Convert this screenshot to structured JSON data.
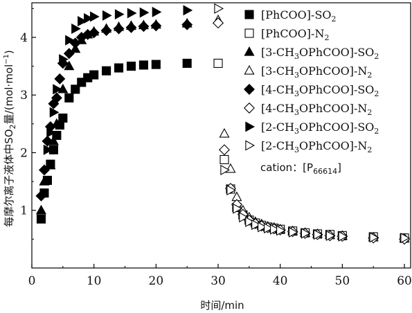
{
  "chart_data": {
    "type": "scatter",
    "xlabel": "时间/min",
    "ylabel": {
      "prefix": "每摩尔离子液体中SO",
      "sub": "2",
      "suffix": "量/(mol·mol",
      "sup": "−1",
      "end": ")"
    },
    "xlim": [
      0,
      61
    ],
    "ylim": [
      0,
      4.6
    ],
    "xticks": [
      0,
      10,
      20,
      30,
      40,
      50,
      60
    ],
    "yticks": [
      1,
      2,
      3,
      4
    ],
    "grid": false,
    "legend_position": "top-right",
    "annotation": {
      "prefix": "cation：[P",
      "sub": "66614",
      "suffix": "]"
    },
    "series": [
      {
        "name": "[PhCOO]-SO2",
        "label": {
          "base": "[PhCOO]-SO",
          "sub": "2",
          "tail": ""
        },
        "marker": "square",
        "filled": true,
        "points": [
          [
            1.5,
            0.85
          ],
          [
            2,
            1.3
          ],
          [
            2.5,
            1.52
          ],
          [
            3,
            1.8
          ],
          [
            3.5,
            2.05
          ],
          [
            4,
            2.3
          ],
          [
            4.5,
            2.48
          ],
          [
            5,
            2.6
          ],
          [
            6,
            2.95
          ],
          [
            7,
            3.1
          ],
          [
            8,
            3.22
          ],
          [
            9,
            3.3
          ],
          [
            10,
            3.35
          ],
          [
            12,
            3.42
          ],
          [
            14,
            3.47
          ],
          [
            16,
            3.5
          ],
          [
            18,
            3.52
          ],
          [
            20,
            3.53
          ],
          [
            25,
            3.55
          ]
        ]
      },
      {
        "name": "[PhCOO]-N2",
        "label": {
          "base": "[PhCOO]-N",
          "sub": "2",
          "tail": ""
        },
        "marker": "square",
        "filled": false,
        "points": [
          [
            30,
            3.55
          ],
          [
            31,
            1.88
          ],
          [
            32,
            1.37
          ],
          [
            33,
            1.05
          ],
          [
            34,
            0.92
          ],
          [
            35,
            0.83
          ],
          [
            36,
            0.78
          ],
          [
            37,
            0.74
          ],
          [
            38,
            0.71
          ],
          [
            39,
            0.69
          ],
          [
            40,
            0.67
          ],
          [
            42,
            0.64
          ],
          [
            44,
            0.61
          ],
          [
            46,
            0.59
          ],
          [
            48,
            0.58
          ],
          [
            50,
            0.56
          ],
          [
            55,
            0.54
          ],
          [
            60,
            0.52
          ]
        ]
      },
      {
        "name": "[3-CH3OPhCOO]-SO2",
        "label": {
          "base": "[3-CH",
          "sub": "3",
          "tail": "OPhCOO]-SO",
          "sub2": "2"
        },
        "marker": "triangle-up",
        "filled": true,
        "points": [
          [
            1.5,
            1.0
          ],
          [
            2,
            1.5
          ],
          [
            3,
            1.78
          ],
          [
            3.5,
            2.2
          ],
          [
            4,
            2.5
          ],
          [
            5,
            3.1
          ],
          [
            6,
            3.5
          ],
          [
            7,
            3.8
          ],
          [
            8,
            3.95
          ],
          [
            9,
            4.05
          ],
          [
            10,
            4.1
          ],
          [
            12,
            4.15
          ],
          [
            14,
            4.18
          ],
          [
            16,
            4.2
          ],
          [
            18,
            4.21
          ],
          [
            20,
            4.22
          ],
          [
            25,
            4.24
          ]
        ]
      },
      {
        "name": "[3-CH3OPhCOO]-N2",
        "label": {
          "base": "[3-CH",
          "sub": "3",
          "tail": "OPhCOO]-N",
          "sub2": "2"
        },
        "marker": "triangle-up",
        "filled": false,
        "points": [
          [
            30,
            4.3
          ],
          [
            31,
            2.33
          ],
          [
            32,
            1.72
          ],
          [
            33,
            1.23
          ],
          [
            34,
            1.0
          ],
          [
            35,
            0.88
          ],
          [
            36,
            0.8
          ],
          [
            37,
            0.76
          ],
          [
            38,
            0.72
          ],
          [
            39,
            0.7
          ],
          [
            40,
            0.67
          ],
          [
            42,
            0.64
          ],
          [
            44,
            0.61
          ],
          [
            46,
            0.59
          ],
          [
            48,
            0.57
          ],
          [
            50,
            0.56
          ],
          [
            55,
            0.53
          ],
          [
            60,
            0.51
          ]
        ]
      },
      {
        "name": "[4-CH3OPhCOO]-SO2",
        "label": {
          "base": "[4-CH",
          "sub": "3",
          "tail": "OPhCOO]-SO",
          "sub2": "2"
        },
        "marker": "diamond",
        "filled": true,
        "points": [
          [
            1.5,
            1.25
          ],
          [
            2,
            1.7
          ],
          [
            2.5,
            2.2
          ],
          [
            3,
            2.45
          ],
          [
            3.5,
            2.85
          ],
          [
            4,
            2.95
          ],
          [
            4.5,
            3.28
          ],
          [
            5,
            3.55
          ],
          [
            6,
            3.72
          ],
          [
            7,
            3.9
          ],
          [
            8,
            4.0
          ],
          [
            9,
            4.05
          ],
          [
            10,
            4.08
          ],
          [
            12,
            4.12
          ],
          [
            14,
            4.15
          ],
          [
            16,
            4.17
          ],
          [
            18,
            4.19
          ],
          [
            20,
            4.2
          ],
          [
            25,
            4.22
          ]
        ]
      },
      {
        "name": "[4-CH3OPhCOO]-N2",
        "label": {
          "base": "[4-CH",
          "sub": "3",
          "tail": "OPhCOO]-N",
          "sub2": "2"
        },
        "marker": "diamond",
        "filled": false,
        "points": [
          [
            30,
            4.25
          ],
          [
            31,
            2.05
          ],
          [
            32,
            1.38
          ],
          [
            33,
            1.1
          ],
          [
            34,
            0.93
          ],
          [
            35,
            0.83
          ],
          [
            36,
            0.77
          ],
          [
            37,
            0.73
          ],
          [
            38,
            0.7
          ],
          [
            39,
            0.68
          ],
          [
            40,
            0.66
          ],
          [
            42,
            0.63
          ],
          [
            44,
            0.6
          ],
          [
            46,
            0.58
          ],
          [
            48,
            0.56
          ],
          [
            50,
            0.55
          ],
          [
            55,
            0.52
          ],
          [
            60,
            0.5
          ]
        ]
      },
      {
        "name": "[2-CH3OPhCOO]-SO2",
        "label": {
          "base": "[2-CH",
          "sub": "3",
          "tail": "OPhCOO]-SO",
          "sub2": "2"
        },
        "marker": "triangle-right",
        "filled": true,
        "points": [
          [
            2.5,
            2.05
          ],
          [
            3,
            2.35
          ],
          [
            3.5,
            2.7
          ],
          [
            4,
            3.1
          ],
          [
            5,
            3.62
          ],
          [
            6,
            3.95
          ],
          [
            7,
            4.15
          ],
          [
            8,
            4.28
          ],
          [
            9,
            4.33
          ],
          [
            10,
            4.36
          ],
          [
            12,
            4.38
          ],
          [
            14,
            4.4
          ],
          [
            16,
            4.42
          ],
          [
            18,
            4.43
          ],
          [
            20,
            4.44
          ],
          [
            25,
            4.47
          ]
        ]
      },
      {
        "name": "[2-CH3OPhCOO]-N2",
        "label": {
          "base": "[2-CH",
          "sub": "3",
          "tail": "OPhCOO]-N",
          "sub2": "2"
        },
        "marker": "triangle-right",
        "filled": false,
        "points": [
          [
            30,
            4.5
          ],
          [
            31,
            1.7
          ],
          [
            32,
            1.35
          ],
          [
            33,
            1.03
          ],
          [
            34,
            0.88
          ],
          [
            35,
            0.8
          ],
          [
            36,
            0.75
          ],
          [
            37,
            0.71
          ],
          [
            38,
            0.69
          ],
          [
            39,
            0.67
          ],
          [
            40,
            0.65
          ],
          [
            42,
            0.62
          ],
          [
            44,
            0.6
          ],
          [
            46,
            0.58
          ],
          [
            48,
            0.56
          ],
          [
            50,
            0.55
          ],
          [
            55,
            0.53
          ],
          [
            60,
            0.52
          ]
        ]
      }
    ]
  }
}
